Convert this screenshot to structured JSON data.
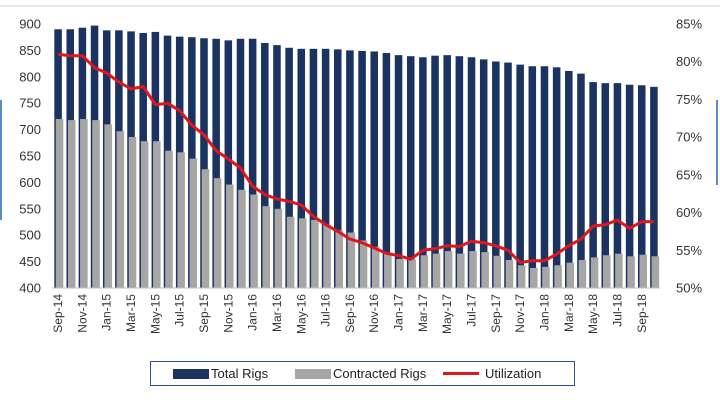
{
  "chart_data": {
    "type": "bar",
    "categories": [
      "Sep-14",
      "Oct-14",
      "Nov-14",
      "Dec-14",
      "Jan-15",
      "Feb-15",
      "Mar-15",
      "Apr-15",
      "May-15",
      "Jun-15",
      "Jul-15",
      "Aug-15",
      "Sep-15",
      "Oct-15",
      "Nov-15",
      "Dec-15",
      "Jan-16",
      "Feb-16",
      "Mar-16",
      "Apr-16",
      "May-16",
      "Jun-16",
      "Jul-16",
      "Aug-16",
      "Sep-16",
      "Oct-16",
      "Nov-16",
      "Dec-16",
      "Jan-17",
      "Feb-17",
      "Mar-17",
      "Apr-17",
      "May-17",
      "Jun-17",
      "Jul-17",
      "Aug-17",
      "Sep-17",
      "Oct-17",
      "Nov-17",
      "Dec-17",
      "Jan-18",
      "Feb-18",
      "Mar-18",
      "Apr-18",
      "May-18",
      "Jun-18",
      "Jul-18",
      "Aug-18",
      "Sep-18",
      "Oct-18"
    ],
    "x_tick_labels": [
      "Sep-14",
      "Nov-14",
      "Jan-15",
      "Mar-15",
      "May-15",
      "Jul-15",
      "Sep-15",
      "Nov-15",
      "Jan-16",
      "Mar-16",
      "May-16",
      "Jul-16",
      "Sep-16",
      "Nov-16",
      "Jan-17",
      "Mar-17",
      "May-17",
      "Jul-17",
      "Sep-17",
      "Nov-17",
      "Jan-18",
      "Mar-18",
      "May-18",
      "Jul-18",
      "Sep-18"
    ],
    "series": [
      {
        "name": "Total Rigs",
        "axis": "left",
        "kind": "bar",
        "color": "#1b3360",
        "values": [
          890,
          890,
          893,
          897,
          888,
          888,
          886,
          883,
          885,
          878,
          876,
          875,
          873,
          872,
          869,
          872,
          872,
          864,
          860,
          855,
          853,
          853,
          853,
          852,
          850,
          849,
          848,
          845,
          841,
          839,
          837,
          840,
          841,
          839,
          837,
          833,
          829,
          827,
          823,
          820,
          820,
          818,
          811,
          806,
          790,
          788,
          788,
          785,
          784,
          781
        ]
      },
      {
        "name": "Contracted Rigs",
        "axis": "left",
        "kind": "bar",
        "color": "#a6a6a6",
        "values": [
          720,
          718,
          720,
          718,
          710,
          697,
          686,
          678,
          678,
          660,
          657,
          645,
          625,
          608,
          596,
          586,
          577,
          555,
          550,
          535,
          532,
          529,
          520,
          509,
          505,
          490,
          478,
          466,
          455,
          454,
          462,
          465,
          470,
          465,
          470,
          468,
          461,
          453,
          443,
          438,
          440,
          443,
          448,
          453,
          458,
          462,
          465,
          460,
          463,
          460
        ]
      },
      {
        "name": "Utilization",
        "axis": "right",
        "kind": "line",
        "color": "#e0161b",
        "values": [
          81.0,
          80.8,
          80.8,
          79.2,
          78.5,
          77.3,
          76.4,
          76.7,
          74.3,
          74.5,
          73.5,
          71.6,
          70.3,
          68.2,
          67.1,
          65.9,
          63.5,
          62.4,
          61.8,
          61.5,
          61.0,
          59.5,
          58.4,
          57.5,
          56.5,
          56.0,
          55.3,
          54.6,
          54.3,
          53.8,
          55.0,
          55.2,
          55.6,
          55.5,
          56.2,
          56.0,
          55.6,
          55.0,
          53.4,
          53.6,
          53.6,
          54.5,
          55.6,
          56.5,
          58.2,
          58.4,
          59.0,
          57.9,
          58.8,
          58.8
        ]
      }
    ],
    "y_left": {
      "min": 400,
      "max": 900,
      "ticks": [
        400,
        450,
        500,
        550,
        600,
        650,
        700,
        750,
        800,
        850,
        900
      ]
    },
    "y_right": {
      "min": 50,
      "max": 85,
      "ticks": [
        "50%",
        "55%",
        "60%",
        "65%",
        "70%",
        "75%",
        "80%",
        "85%"
      ]
    },
    "title": "",
    "xlabel": "",
    "ylabel": "",
    "grid": false,
    "legend_position": "bottom-center",
    "legend": [
      "Total Rigs",
      "Contracted Rigs",
      "Utilization"
    ]
  }
}
